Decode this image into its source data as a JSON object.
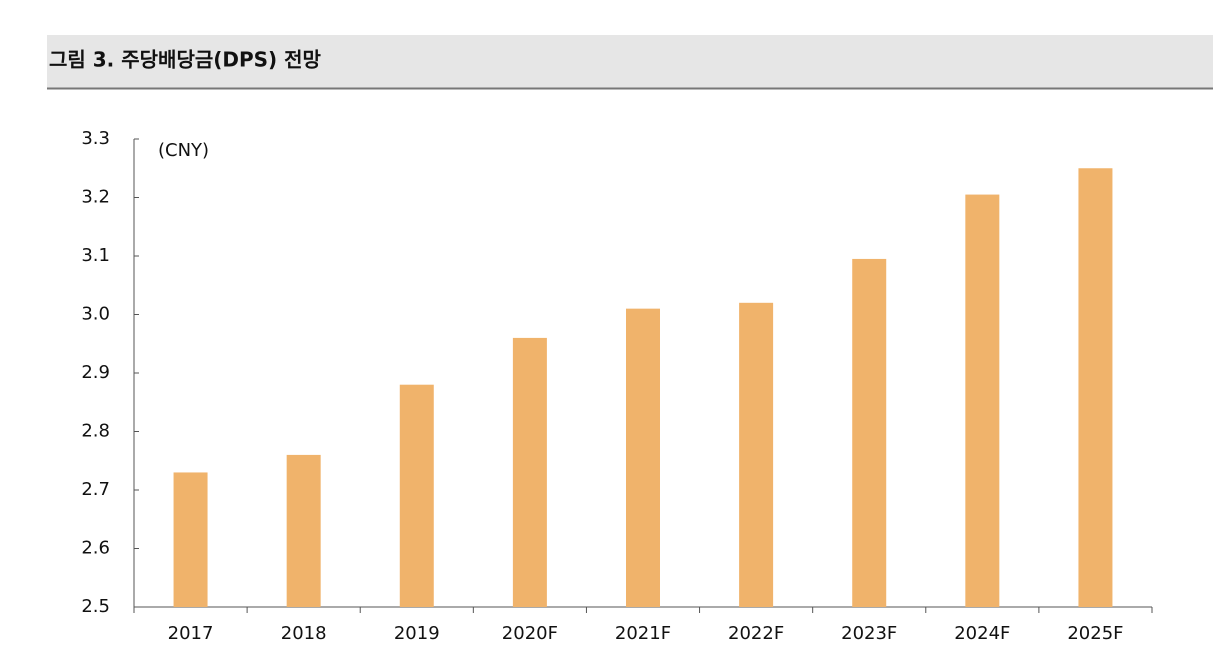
{
  "chart_data": {
    "type": "bar",
    "title": "그림 3. 주당배당금(DPS) 전망",
    "unit_label": "(CNY)",
    "categories": [
      "2017",
      "2018",
      "2019",
      "2020F",
      "2021F",
      "2022F",
      "2023F",
      "2024F",
      "2025F"
    ],
    "values": [
      2.73,
      2.76,
      2.88,
      2.96,
      3.01,
      3.02,
      3.095,
      3.205,
      3.25
    ],
    "color": "#f0b36b",
    "ylim": [
      2.5,
      3.3
    ],
    "yticks": [
      2.5,
      2.6,
      2.7,
      2.8,
      2.9,
      {
        "value": 3,
        "label": "3.0"
      },
      3.1,
      3.2,
      3.3
    ],
    "grid": false
  }
}
